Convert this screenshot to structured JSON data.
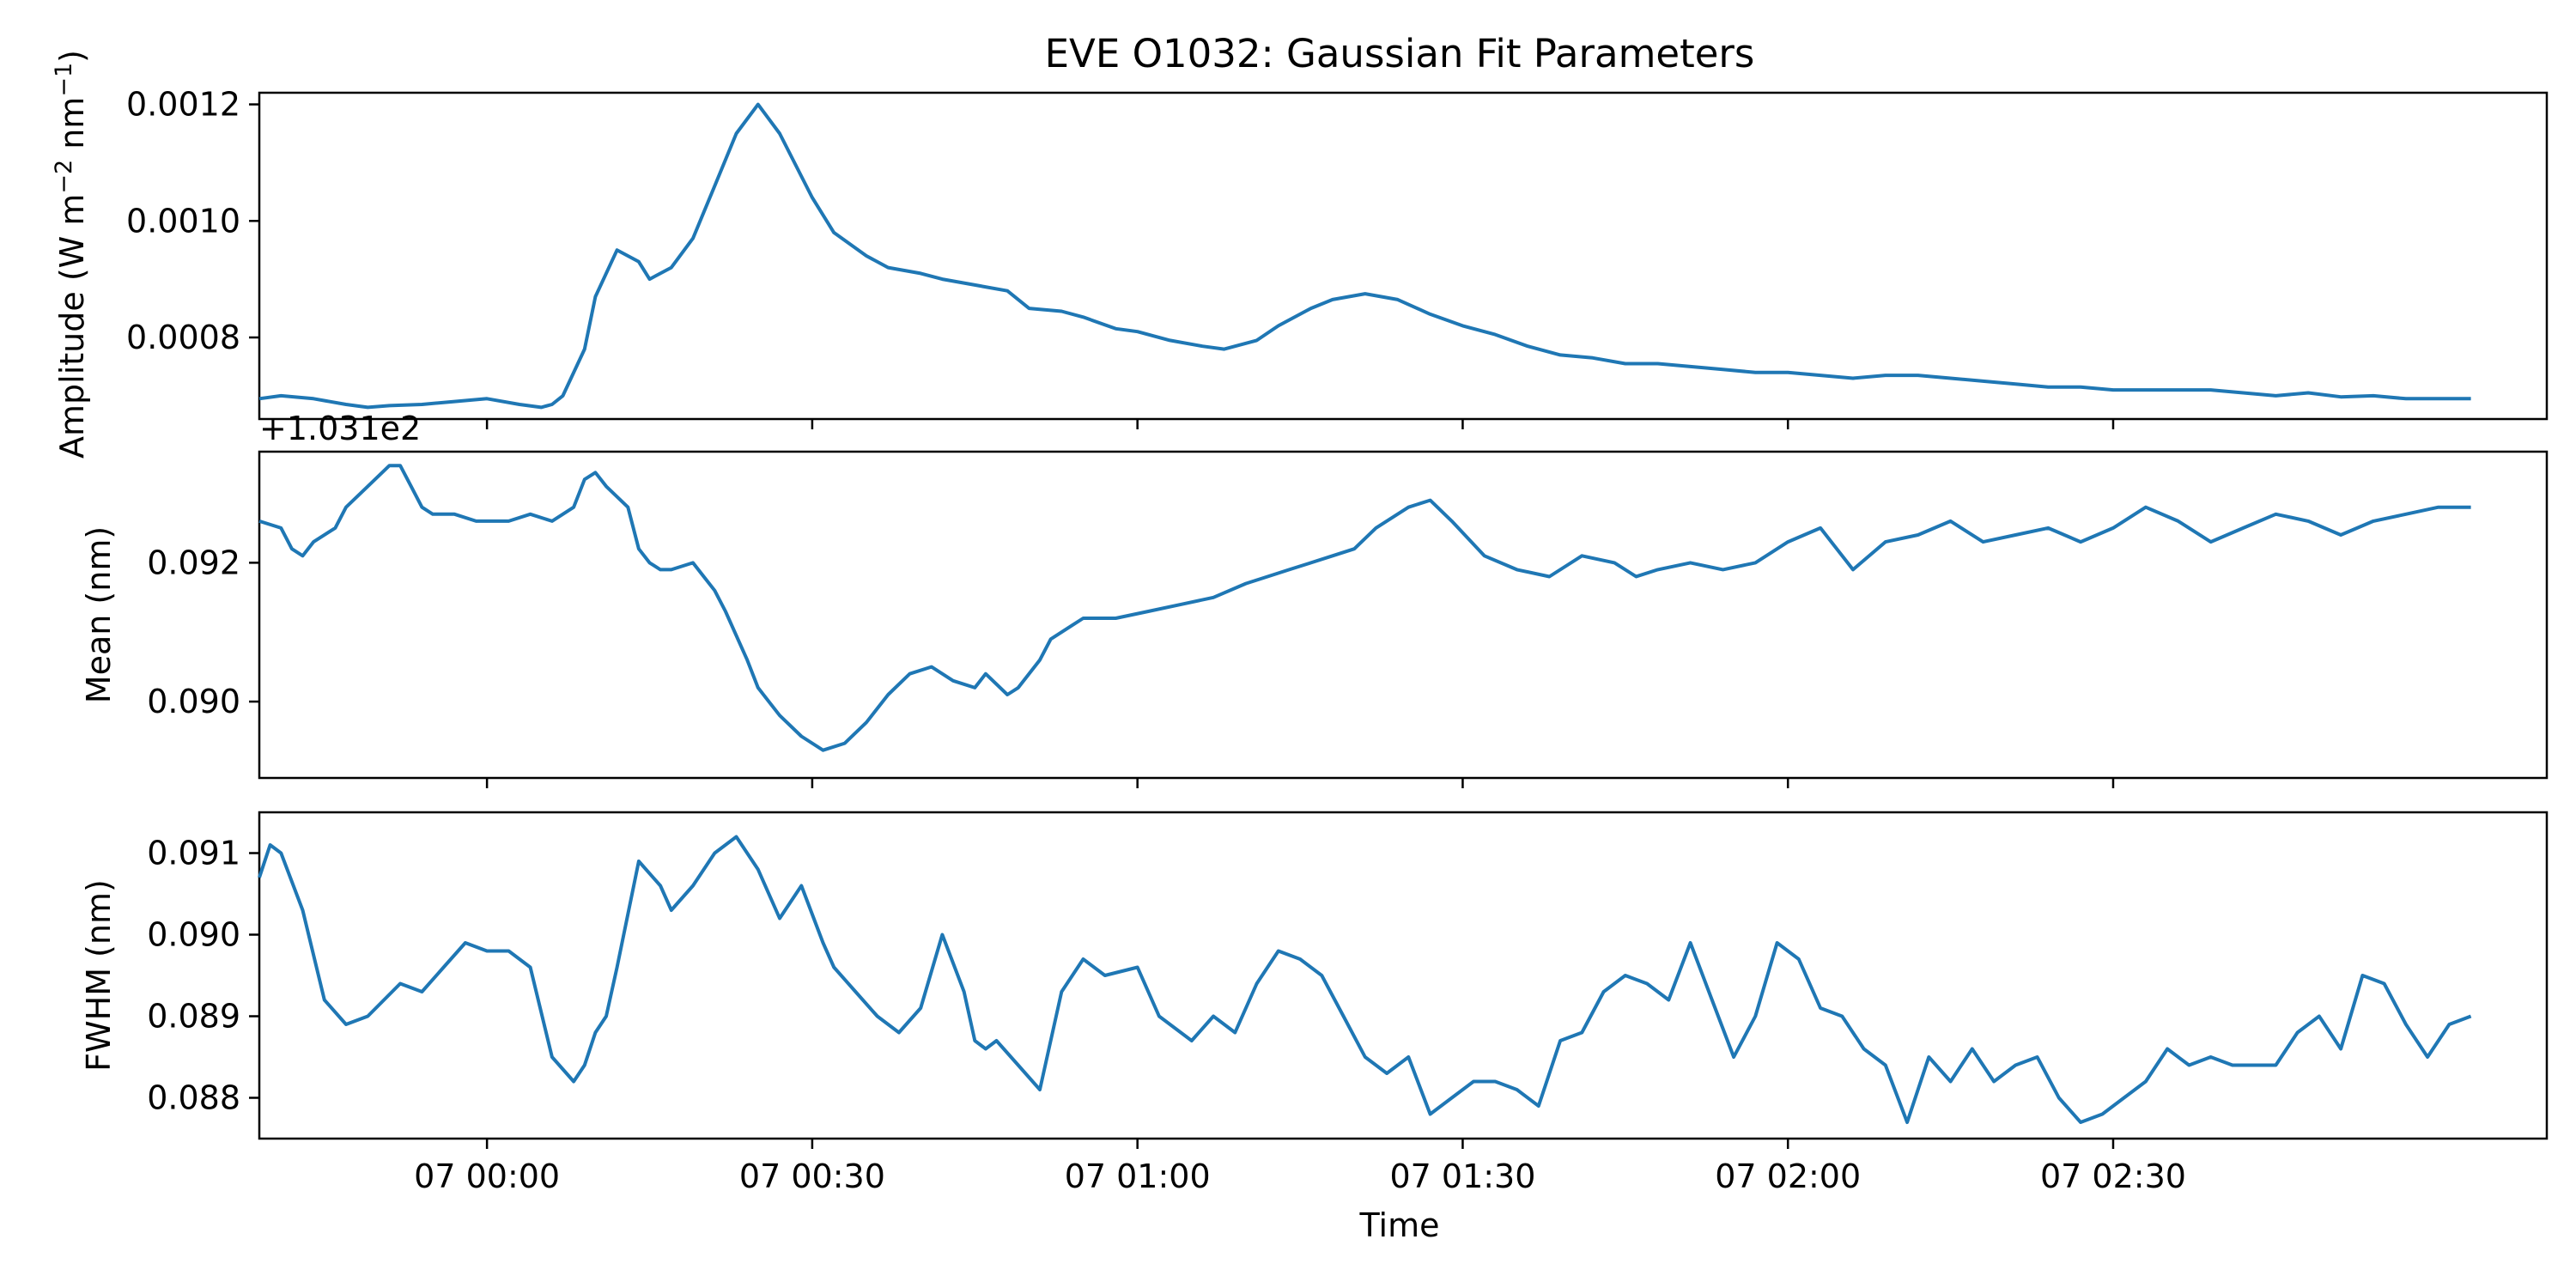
{
  "figure": {
    "title": "EVE O1032: Gaussian Fit Parameters",
    "xlabel": "Time",
    "offset_text": "+1.031e2"
  },
  "chart_data": [
    {
      "type": "line",
      "ylabel": "Amplitude (W m",
      "ylabel_unit_parts": [
        "−2",
        " nm",
        "−1",
        ")"
      ],
      "xlim": [
        "2000-01-06 23:39",
        "2000-01-07 03:10"
      ],
      "ylim": [
        0.00066,
        0.00122
      ],
      "yticks": [
        0.0008,
        0.001,
        0.0012
      ],
      "ytick_labels": [
        "0.0008",
        "0.0010",
        "0.0012"
      ],
      "series": [
        {
          "color": "#1f77b4",
          "x_minutes": [
            0,
            2,
            5,
            8,
            10,
            12,
            15,
            18,
            21,
            24,
            26,
            27,
            28,
            30,
            31,
            33,
            35,
            36,
            38,
            40,
            42,
            44,
            46,
            48,
            51,
            53,
            56,
            58,
            61,
            63,
            66,
            69,
            71,
            74,
            76,
            79,
            81,
            84,
            87,
            89,
            92,
            94,
            97,
            99,
            102,
            105,
            108,
            111,
            114,
            117,
            120,
            123,
            126,
            129,
            132,
            135,
            138,
            141,
            144,
            147,
            150,
            153,
            156,
            159,
            162,
            165,
            168,
            171,
            174,
            177,
            180,
            183,
            186,
            189,
            192,
            195,
            198,
            201,
            204
          ],
          "y": [
            0.000695,
            0.0007,
            0.000695,
            0.000685,
            0.00068,
            0.000683,
            0.000685,
            0.00069,
            0.000695,
            0.000685,
            0.00068,
            0.000685,
            0.0007,
            0.00078,
            0.00087,
            0.00095,
            0.00093,
            0.0009,
            0.00092,
            0.00097,
            0.00106,
            0.00115,
            0.0012,
            0.00115,
            0.00104,
            0.00098,
            0.00094,
            0.00092,
            0.00091,
            0.0009,
            0.00089,
            0.00088,
            0.00085,
            0.000845,
            0.000835,
            0.000815,
            0.00081,
            0.000795,
            0.000785,
            0.00078,
            0.000795,
            0.00082,
            0.00085,
            0.000865,
            0.000875,
            0.000865,
            0.00084,
            0.00082,
            0.000805,
            0.000785,
            0.00077,
            0.000765,
            0.000755,
            0.000755,
            0.00075,
            0.000745,
            0.00074,
            0.00074,
            0.000735,
            0.00073,
            0.000735,
            0.000735,
            0.00073,
            0.000725,
            0.00072,
            0.000715,
            0.000715,
            0.00071,
            0.00071,
            0.00071,
            0.00071,
            0.000705,
            0.0007,
            0.000705,
            0.000698,
            0.0007,
            0.000695,
            0.000695,
            0.000695
          ]
        }
      ]
    },
    {
      "type": "line",
      "ylabel": "Mean (nm)",
      "ylim": [
        0.0889,
        0.0936
      ],
      "yticks": [
        0.09,
        0.092
      ],
      "ytick_labels": [
        "0.090",
        "0.092"
      ],
      "series": [
        {
          "color": "#1f77b4",
          "x_minutes": [
            0,
            2,
            3,
            4,
            5,
            7,
            8,
            10,
            12,
            13,
            14,
            15,
            16,
            18,
            20,
            21,
            23,
            25,
            27,
            29,
            30,
            31,
            32,
            34,
            35,
            36,
            37,
            38,
            40,
            41,
            42,
            43,
            45,
            46,
            48,
            50,
            52,
            54,
            56,
            58,
            60,
            62,
            64,
            66,
            67,
            69,
            70,
            72,
            73,
            75,
            76,
            79,
            82,
            85,
            88,
            91,
            93,
            95,
            97,
            99,
            101,
            103,
            106,
            108,
            110,
            113,
            116,
            119,
            122,
            125,
            127,
            129,
            132,
            135,
            138,
            141,
            144,
            147,
            150,
            153,
            156,
            159,
            162,
            165,
            168,
            171,
            174,
            177,
            180,
            183,
            186,
            189,
            192,
            195,
            198,
            201,
            204
          ],
          "y": [
            0.0926,
            0.0925,
            0.0922,
            0.0921,
            0.0923,
            0.0925,
            0.0928,
            0.0931,
            0.0934,
            0.0934,
            0.0931,
            0.0928,
            0.0927,
            0.0927,
            0.0926,
            0.0926,
            0.0926,
            0.0927,
            0.0926,
            0.0928,
            0.0932,
            0.0933,
            0.0931,
            0.0928,
            0.0922,
            0.092,
            0.0919,
            0.0919,
            0.092,
            0.0918,
            0.0916,
            0.0913,
            0.0906,
            0.0902,
            0.0898,
            0.0895,
            0.0893,
            0.0894,
            0.0897,
            0.0901,
            0.0904,
            0.0905,
            0.0903,
            0.0902,
            0.0904,
            0.0901,
            0.0902,
            0.0906,
            0.0909,
            0.0911,
            0.0912,
            0.0912,
            0.0913,
            0.0914,
            0.0915,
            0.0917,
            0.0918,
            0.0919,
            0.092,
            0.0921,
            0.0922,
            0.0925,
            0.0928,
            0.0929,
            0.0926,
            0.0921,
            0.0919,
            0.0918,
            0.0921,
            0.092,
            0.0918,
            0.0919,
            0.092,
            0.0919,
            0.092,
            0.0923,
            0.0925,
            0.0919,
            0.0923,
            0.0924,
            0.0926,
            0.0923,
            0.0924,
            0.0925,
            0.0923,
            0.0925,
            0.0928,
            0.0926,
            0.0923,
            0.0925,
            0.0927,
            0.0926,
            0.0924,
            0.0926,
            0.0927,
            0.0928,
            0.0928
          ]
        }
      ]
    },
    {
      "type": "line",
      "ylabel": "FWHM (nm)",
      "ylim": [
        0.0875,
        0.0915
      ],
      "yticks": [
        0.088,
        0.089,
        0.09,
        0.091
      ],
      "ytick_labels": [
        "0.088",
        "0.089",
        "0.090",
        "0.091"
      ],
      "xticks": [
        "2000-01-07 00:00",
        "2000-01-07 00:30",
        "2000-01-07 01:00",
        "2000-01-07 01:30",
        "2000-01-07 02:00",
        "2000-01-07 02:30"
      ],
      "xtick_labels": [
        "07 00:00",
        "07 00:30",
        "07 01:00",
        "07 01:30",
        "07 02:00",
        "07 02:30"
      ],
      "series": [
        {
          "color": "#1f77b4",
          "x_minutes": [
            0,
            1,
            2,
            4,
            6,
            8,
            10,
            13,
            15,
            17,
            19,
            21,
            23,
            25,
            27,
            29,
            30,
            31,
            32,
            33,
            35,
            37,
            38,
            40,
            42,
            44,
            46,
            48,
            50,
            52,
            53,
            55,
            57,
            59,
            61,
            63,
            65,
            66,
            67,
            68,
            70,
            72,
            74,
            76,
            78,
            81,
            83,
            86,
            88,
            90,
            92,
            94,
            96,
            98,
            100,
            102,
            104,
            106,
            108,
            110,
            112,
            114,
            116,
            118,
            120,
            122,
            124,
            126,
            128,
            130,
            132,
            134,
            136,
            138,
            140,
            142,
            144,
            146,
            148,
            150,
            152,
            154,
            156,
            158,
            160,
            162,
            164,
            166,
            168,
            170,
            172,
            174,
            176,
            178,
            180,
            182,
            184,
            186,
            188,
            190,
            192,
            194,
            196,
            198,
            200,
            202,
            204
          ],
          "y": [
            0.0907,
            0.0911,
            0.091,
            0.0903,
            0.0892,
            0.0889,
            0.089,
            0.0894,
            0.0893,
            0.0896,
            0.0899,
            0.0898,
            0.0898,
            0.0896,
            0.0885,
            0.0882,
            0.0884,
            0.0888,
            0.089,
            0.0896,
            0.0909,
            0.0906,
            0.0903,
            0.0906,
            0.091,
            0.0912,
            0.0908,
            0.0902,
            0.0906,
            0.0899,
            0.0896,
            0.0893,
            0.089,
            0.0888,
            0.0891,
            0.09,
            0.0893,
            0.0887,
            0.0886,
            0.0887,
            0.0884,
            0.0881,
            0.0893,
            0.0897,
            0.0895,
            0.0896,
            0.089,
            0.0887,
            0.089,
            0.0888,
            0.0894,
            0.0898,
            0.0897,
            0.0895,
            0.089,
            0.0885,
            0.0883,
            0.0885,
            0.0878,
            0.088,
            0.0882,
            0.0882,
            0.0881,
            0.0879,
            0.0887,
            0.0888,
            0.0893,
            0.0895,
            0.0894,
            0.0892,
            0.0899,
            0.0892,
            0.0885,
            0.089,
            0.0899,
            0.0897,
            0.0891,
            0.089,
            0.0886,
            0.0884,
            0.0877,
            0.0885,
            0.0882,
            0.0886,
            0.0882,
            0.0884,
            0.0885,
            0.088,
            0.0877,
            0.0878,
            0.088,
            0.0882,
            0.0886,
            0.0884,
            0.0885,
            0.0884,
            0.0884,
            0.0884,
            0.0888,
            0.089,
            0.0886,
            0.0895,
            0.0894,
            0.0889,
            0.0885,
            0.0889,
            0.089
          ]
        }
      ]
    }
  ]
}
